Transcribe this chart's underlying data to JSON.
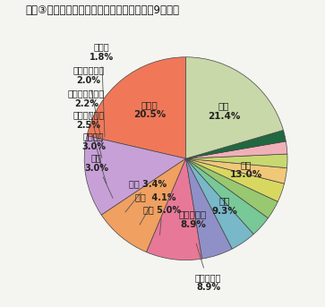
{
  "title": "図表③　発信時間数における対地別シェア（9年度）",
  "slices": [
    {
      "label": "米国",
      "pct": 21.4,
      "color": "#f07858"
    },
    {
      "label": "中国",
      "pct": 13.0,
      "color": "#c8a0d8"
    },
    {
      "label": "韓国",
      "pct": 9.3,
      "color": "#f0a060"
    },
    {
      "label": "フィリピン",
      "pct": 8.9,
      "color": "#e87898"
    },
    {
      "label": "台湾",
      "pct": 5.0,
      "color": "#9090c8"
    },
    {
      "label": "タイ",
      "pct": 4.1,
      "color": "#78b8c8"
    },
    {
      "label": "香港",
      "pct": 3.4,
      "color": "#78c898"
    },
    {
      "label": "英国",
      "pct": 3.0,
      "color": "#98c870"
    },
    {
      "label": "ブラジル",
      "pct": 3.0,
      "color": "#d8d860"
    },
    {
      "label": "シンガポール",
      "pct": 2.5,
      "color": "#f0c878"
    },
    {
      "label": "オーストラリア",
      "pct": 2.2,
      "color": "#c8d870"
    },
    {
      "label": "インドネシア",
      "pct": 2.0,
      "color": "#f0b0b8"
    },
    {
      "label": "カナダ",
      "pct": 1.8,
      "color": "#206840"
    },
    {
      "label": "その他",
      "pct": 20.5,
      "color": "#c8d8a8"
    }
  ],
  "bg_color": "#f4f4f0",
  "startangle": 90,
  "figsize": [
    3.63,
    3.43
  ],
  "dpi": 100,
  "title_fontsize": 8.5,
  "pie_fontsize": 7.5,
  "label_fontsize": 7.0
}
